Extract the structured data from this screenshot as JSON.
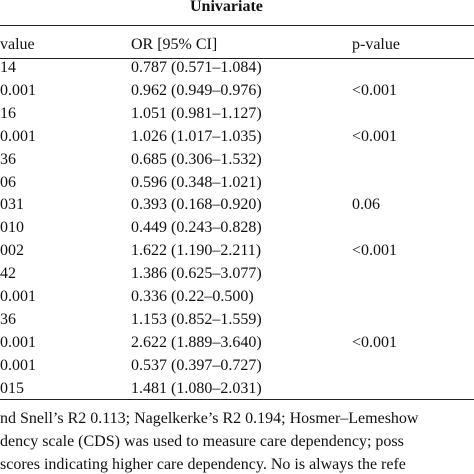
{
  "table": {
    "header": "Univariate",
    "columns": [
      "value",
      "OR [95% CI]",
      "p-value"
    ],
    "rows": [
      {
        "left": "14",
        "or": "0.787 (0.571–1.084)"
      },
      {
        "left": "0.001",
        "or": "0.962 (0.949–0.976)",
        "p": "<0.001"
      },
      {
        "left": "16",
        "or": "1.051 (0.981–1.127)"
      },
      {
        "left": "0.001",
        "or": "1.026 (1.017–1.035)",
        "p": "<0.001"
      },
      {
        "left": "36",
        "or": "0.685 (0.306–1.532)"
      },
      {
        "left": "06",
        "or": "0.596 (0.348–1.021)"
      },
      {
        "left": "031",
        "or": "0.393 (0.168–0.920)",
        "p": "0.06"
      },
      {
        "left": "010",
        "or": "0.449 (0.243–0.828)"
      },
      {
        "left": "002",
        "or": "1.622 (1.190–2.211)",
        "p": "<0.001"
      },
      {
        "left": "42",
        "or": "1.386 (0.625–3.077)"
      },
      {
        "left": "0.001",
        "or": "0.336 (0.22–0.500)"
      },
      {
        "left": "36",
        "or": "1.153 (0.852–1.559)"
      },
      {
        "left": "0.001",
        "or": "2.622 (1.889–3.640)",
        "p": "<0.001"
      },
      {
        "left": "0.001",
        "or": "0.537 (0.397–0.727)"
      },
      {
        "left": "015",
        "or": "1.481 (1.080–2.031)"
      }
    ],
    "footnotes": [
      "nd Snell’s R2 0.113; Nagelkerke’s R2 0.194; Hosmer–Lemeshow",
      "dency scale (CDS) was used to measure care dependency; poss",
      "scores indicating higher care dependency. No is always the refe"
    ]
  }
}
